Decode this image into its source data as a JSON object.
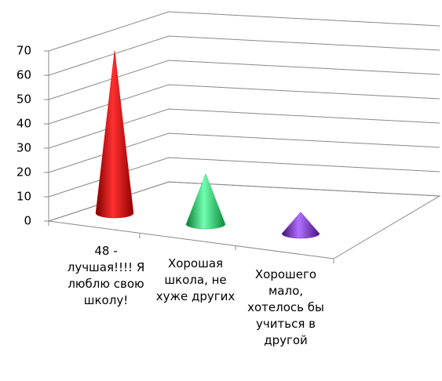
{
  "chart_data": {
    "type": "cone",
    "categories": [
      "48 - лучшая!!!! Я люблю свою школу!",
      "Хорошая школа, не хуже других",
      "Хорошего мало, хотелось бы учиться в другой"
    ],
    "series": [
      {
        "values": [
          68,
          21,
          9
        ],
        "colors": [
          "#e00000",
          "#20c060",
          "#7a30c0"
        ]
      }
    ],
    "ylim": [
      0,
      70
    ],
    "yticks": [
      0,
      10,
      20,
      30,
      40,
      50,
      60,
      70
    ],
    "grid": true
  }
}
